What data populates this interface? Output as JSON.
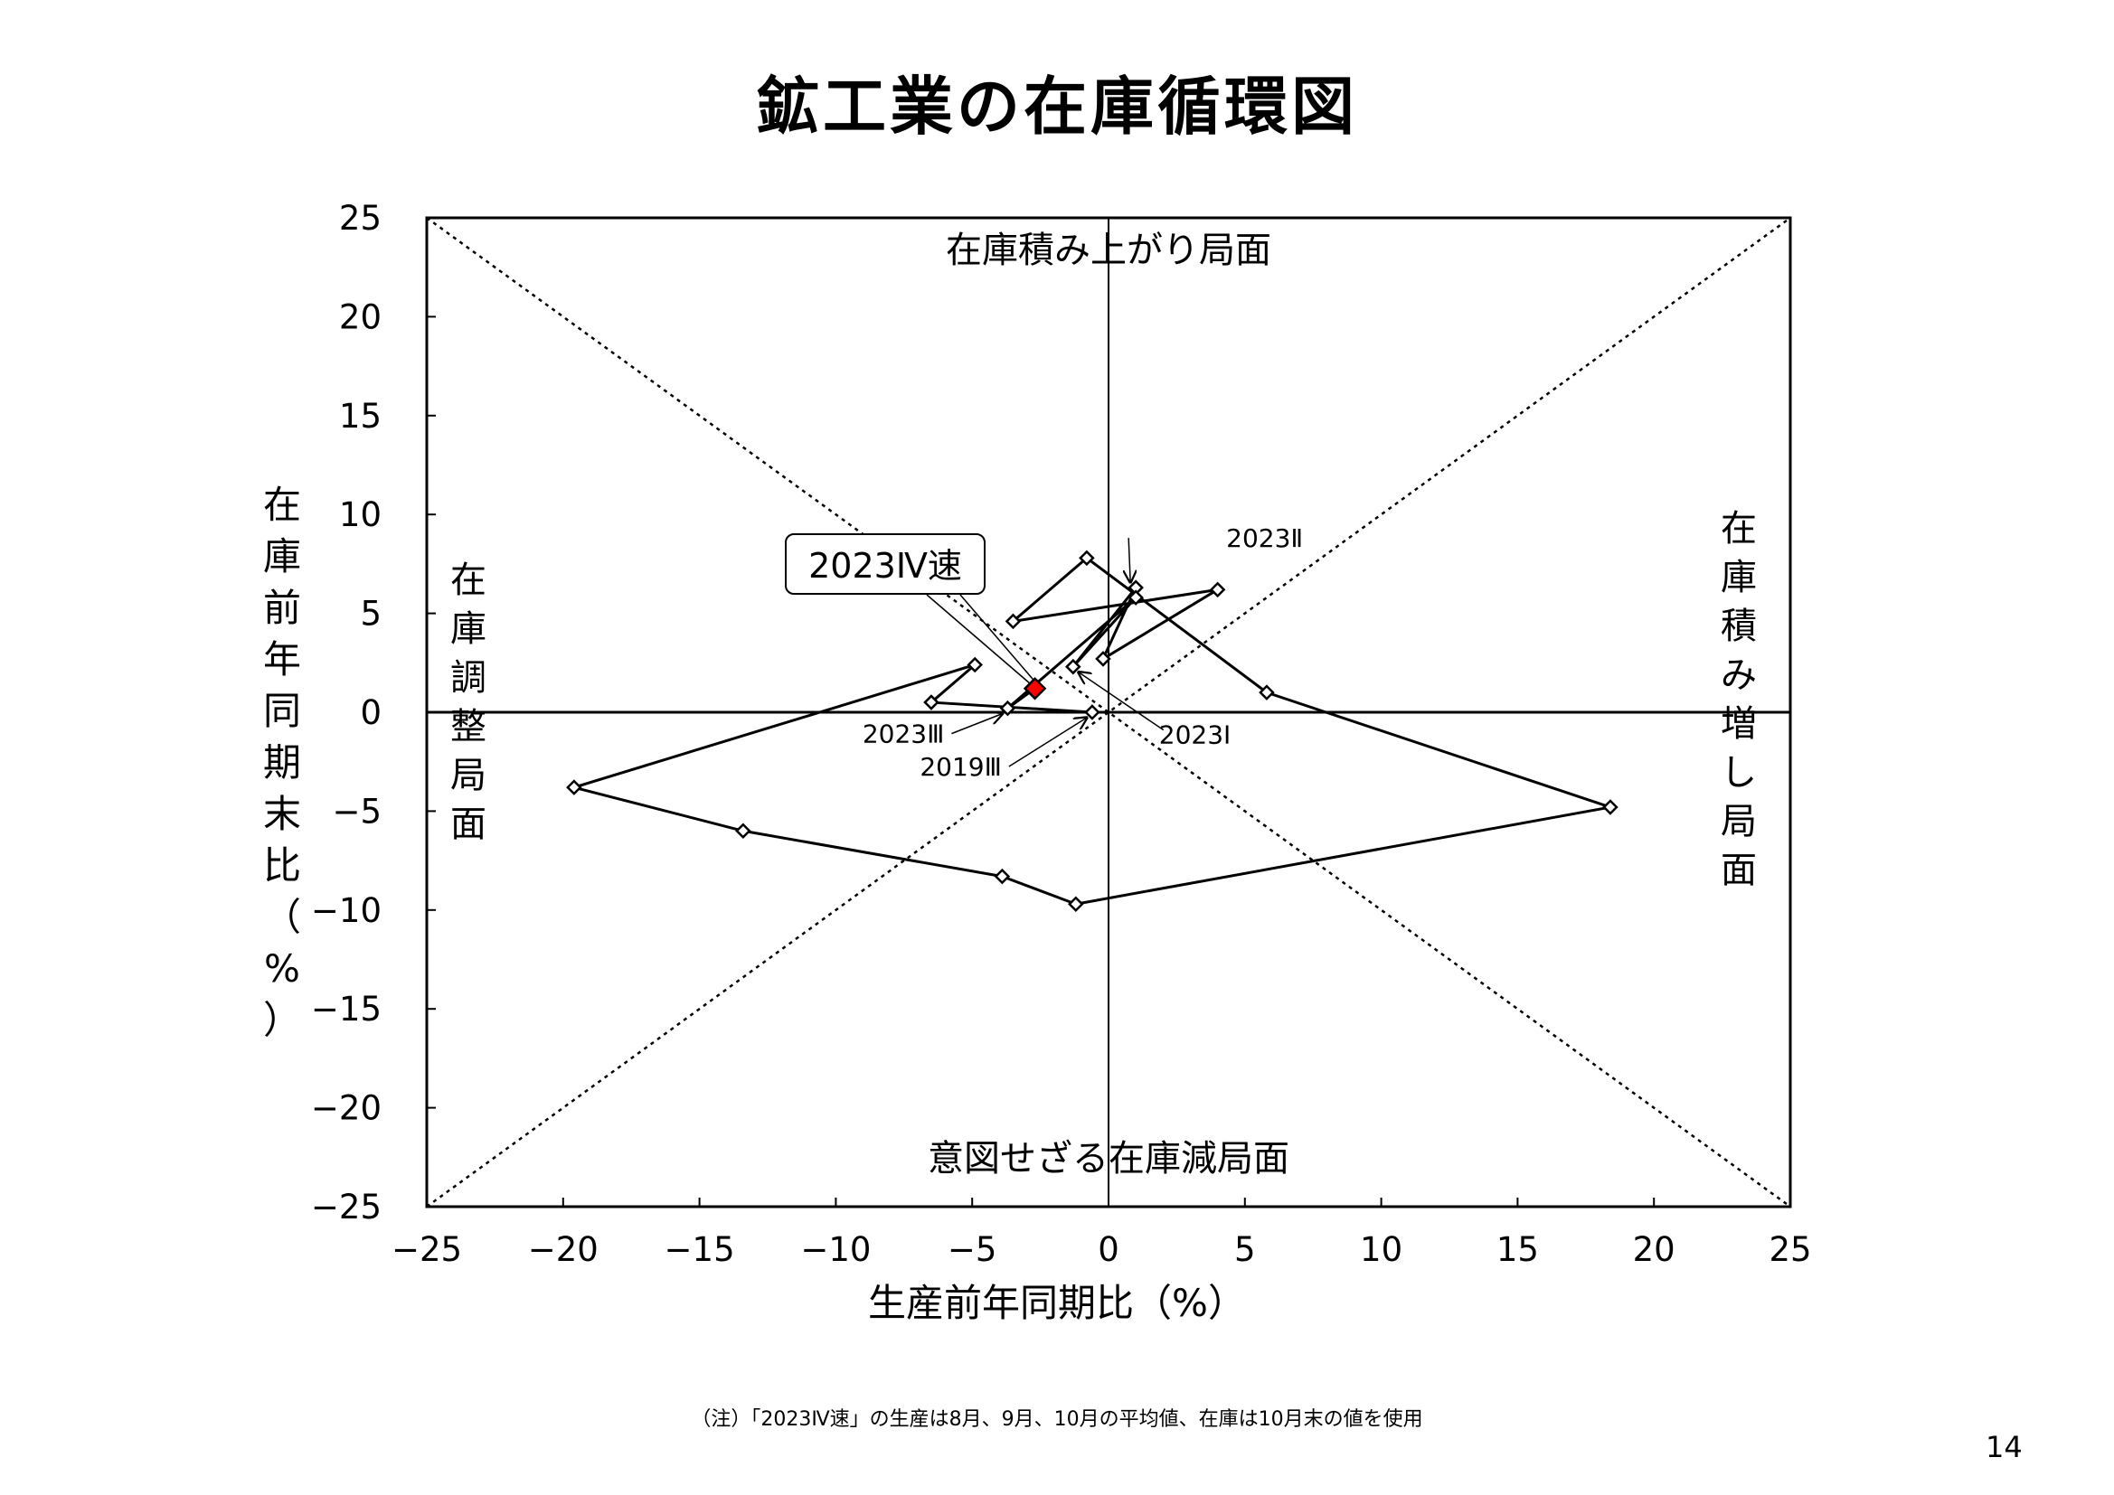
{
  "title": "鉱工業の在庫循環図",
  "page_number": "14",
  "footnote": "（注）「2023Ⅳ速」の生産は8月、9月、10月の平均値、在庫は10月末の値を使用",
  "quadrant_labels": {
    "top": "在庫積み上がり局面",
    "bottom": "意図せざる在庫減局面",
    "left": "在庫調整局面",
    "right": "在庫積み増し局面"
  },
  "callout": "2023Ⅳ速",
  "colors": {
    "line": "#000000",
    "highlight": "#ff0000"
  },
  "chart_data": {
    "type": "scatter",
    "title": "鉱工業の在庫循環図",
    "xlabel": "生産前年同期比（%）",
    "ylabel": "在庫前年同期末比（%）",
    "xlim": [
      -25,
      25
    ],
    "ylim": [
      -25,
      25
    ],
    "xticks": [
      "−25",
      "−20",
      "−15",
      "−10",
      "−5",
      "0",
      "5",
      "10",
      "15",
      "20",
      "25"
    ],
    "yticks": [
      "25",
      "20",
      "15",
      "10",
      "5",
      "0",
      "−5",
      "−10",
      "−15",
      "−20",
      "−25"
    ],
    "grid": false,
    "reference_lines": "dotted diagonals y=x and y=−x",
    "series": [
      {
        "points": [
          {
            "x": -0.6,
            "y": 0.0
          },
          {
            "x": -6.5,
            "y": 0.5
          },
          {
            "x": -4.9,
            "y": 2.4
          },
          {
            "x": -19.6,
            "y": -3.8
          },
          {
            "x": -13.4,
            "y": -6.0
          },
          {
            "x": -3.9,
            "y": -8.3
          },
          {
            "x": -1.2,
            "y": -9.7
          },
          {
            "x": 18.4,
            "y": -4.8
          },
          {
            "x": 5.8,
            "y": 1.0
          },
          {
            "x": -0.8,
            "y": 7.8
          },
          {
            "x": -3.5,
            "y": 4.6
          },
          {
            "x": 4.0,
            "y": 6.2
          },
          {
            "x": -0.2,
            "y": 2.7
          },
          {
            "x": 1.0,
            "y": 6.3
          },
          {
            "x": -1.3,
            "y": 2.3
          },
          {
            "x": 1.0,
            "y": 5.8
          },
          {
            "x": -3.7,
            "y": 0.2
          }
        ]
      }
    ],
    "highlight_point": {
      "x": -2.7,
      "y": 1.2,
      "label": "2023Ⅳ速"
    },
    "annotations": [
      {
        "text": "2023Ⅱ",
        "x": 1.0,
        "y": 6.3
      },
      {
        "text": "2023Ⅰ",
        "x": -1.3,
        "y": 2.3
      },
      {
        "text": "2023Ⅲ",
        "x": -3.7,
        "y": 0.2
      },
      {
        "text": "2019Ⅲ",
        "x": -0.6,
        "y": 0.0
      }
    ]
  }
}
